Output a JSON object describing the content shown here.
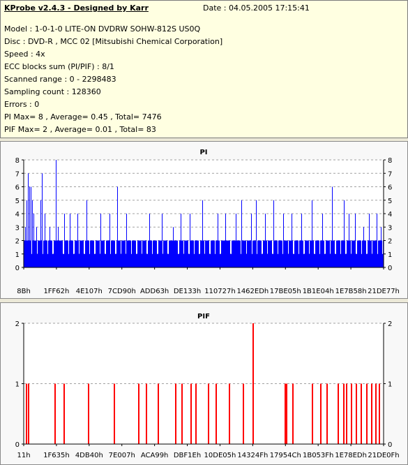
{
  "header": {
    "title": "KProbe v2.4.3 - Designed by Karr",
    "date": "Date : 04.05.2005 17:15:41"
  },
  "info_lines": [
    "Model : 1-0-1-0 LITE-ON DVDRW SOHW-812S  US0Q",
    "Disc : DVD-R , MCC 02 [Mitsubishi Chemical Corporation]",
    "Speed : 4x",
    "ECC blocks sum (PI/PIF) : 8/1",
    "Scanned range : 0 - 2298483",
    "Sampling count : 128360",
    "Errors : 0",
    "PI Max= 8 , Average= 0.45 , Total= 7476",
    "PIF Max= 2 , Average= 0.01 , Total= 83"
  ],
  "colors": {
    "pi_bar": "#0000FF",
    "pif_bar": "#FF0000",
    "axis": "#000000",
    "grid": "#A0A0A0"
  },
  "chart_data": [
    {
      "type": "bar",
      "title": "PI",
      "ylim": [
        0,
        8
      ],
      "yticks": [
        "0",
        "1",
        "2",
        "3",
        "4",
        "5",
        "6",
        "7",
        "8"
      ],
      "xticks": [
        "8Bh",
        "1FF62h",
        "4E107h",
        "7CD90h",
        "ADD63h",
        "DE133h",
        "110727h",
        "1462EDh",
        "17BE05h",
        "1B1E04h",
        "1E7B58h",
        "21DE77h"
      ],
      "grid": "dashed horizontal",
      "baseline_values": [
        1,
        2
      ],
      "spikes": [
        {
          "x": 0.3,
          "y": 3
        },
        {
          "x": 0.8,
          "y": 5
        },
        {
          "x": 1.2,
          "y": 7
        },
        {
          "x": 1.5,
          "y": 6
        },
        {
          "x": 1.9,
          "y": 6
        },
        {
          "x": 2.3,
          "y": 5
        },
        {
          "x": 2.8,
          "y": 4
        },
        {
          "x": 3.4,
          "y": 3
        },
        {
          "x": 4.6,
          "y": 5
        },
        {
          "x": 5.1,
          "y": 7
        },
        {
          "x": 5.9,
          "y": 4
        },
        {
          "x": 7.2,
          "y": 3
        },
        {
          "x": 8.9,
          "y": 8
        },
        {
          "x": 9.4,
          "y": 3
        },
        {
          "x": 11.3,
          "y": 4
        },
        {
          "x": 12.7,
          "y": 4
        },
        {
          "x": 15.0,
          "y": 4
        },
        {
          "x": 17.5,
          "y": 5
        },
        {
          "x": 21.4,
          "y": 4
        },
        {
          "x": 23.8,
          "y": 4
        },
        {
          "x": 26.0,
          "y": 6
        },
        {
          "x": 28.4,
          "y": 4
        },
        {
          "x": 34.9,
          "y": 4
        },
        {
          "x": 38.3,
          "y": 4
        },
        {
          "x": 41.5,
          "y": 3
        },
        {
          "x": 43.7,
          "y": 4
        },
        {
          "x": 46.2,
          "y": 4
        },
        {
          "x": 49.6,
          "y": 5
        },
        {
          "x": 53.9,
          "y": 4
        },
        {
          "x": 56.0,
          "y": 4
        },
        {
          "x": 58.9,
          "y": 4
        },
        {
          "x": 60.4,
          "y": 5
        },
        {
          "x": 63.2,
          "y": 4
        },
        {
          "x": 64.5,
          "y": 5
        },
        {
          "x": 67.1,
          "y": 4
        },
        {
          "x": 69.4,
          "y": 5
        },
        {
          "x": 72.0,
          "y": 4
        },
        {
          "x": 74.5,
          "y": 4
        },
        {
          "x": 77.2,
          "y": 4
        },
        {
          "x": 80.0,
          "y": 5
        },
        {
          "x": 83.0,
          "y": 4
        },
        {
          "x": 85.6,
          "y": 6
        },
        {
          "x": 88.9,
          "y": 5
        },
        {
          "x": 90.3,
          "y": 4
        },
        {
          "x": 92.0,
          "y": 4
        },
        {
          "x": 94.4,
          "y": 3
        },
        {
          "x": 96.0,
          "y": 4
        },
        {
          "x": 98.0,
          "y": 4
        },
        {
          "x": 99.3,
          "y": 3
        }
      ]
    },
    {
      "type": "bar",
      "title": "PIF",
      "ylim": [
        0,
        2
      ],
      "yticks": [
        "0",
        "1",
        "2"
      ],
      "xticks": [
        "11h",
        "1F635h",
        "4DB40h",
        "7E007h",
        "ACA99h",
        "DBF1Eh",
        "10DE05h",
        "14324Fh",
        "17954Ch",
        "1B053Fh",
        "1E78EDh",
        "21DE0Fh"
      ],
      "grid": "dashed horizontal",
      "bars": [
        {
          "x": 0.6,
          "y": 1
        },
        {
          "x": 1.1,
          "y": 1
        },
        {
          "x": 8.5,
          "y": 1
        },
        {
          "x": 11.0,
          "y": 1
        },
        {
          "x": 17.8,
          "y": 1
        },
        {
          "x": 25.0,
          "y": 1
        },
        {
          "x": 31.8,
          "y": 1
        },
        {
          "x": 34.0,
          "y": 1
        },
        {
          "x": 37.2,
          "y": 1
        },
        {
          "x": 42.0,
          "y": 1
        },
        {
          "x": 43.8,
          "y": 1
        },
        {
          "x": 46.3,
          "y": 1
        },
        {
          "x": 47.6,
          "y": 1
        },
        {
          "x": 51.2,
          "y": 1
        },
        {
          "x": 53.3,
          "y": 1
        },
        {
          "x": 57.0,
          "y": 1
        },
        {
          "x": 60.8,
          "y": 1
        },
        {
          "x": 63.6,
          "y": 2
        },
        {
          "x": 72.4,
          "y": 1
        },
        {
          "x": 72.8,
          "y": 1
        },
        {
          "x": 74.6,
          "y": 1
        },
        {
          "x": 80.0,
          "y": 1
        },
        {
          "x": 82.3,
          "y": 1
        },
        {
          "x": 84.2,
          "y": 1
        },
        {
          "x": 87.3,
          "y": 1
        },
        {
          "x": 88.7,
          "y": 1
        },
        {
          "x": 89.6,
          "y": 1
        },
        {
          "x": 90.8,
          "y": 1
        },
        {
          "x": 92.3,
          "y": 1
        },
        {
          "x": 93.6,
          "y": 1
        },
        {
          "x": 95.2,
          "y": 1
        },
        {
          "x": 96.6,
          "y": 1
        },
        {
          "x": 97.6,
          "y": 1
        },
        {
          "x": 98.6,
          "y": 1
        }
      ]
    }
  ]
}
